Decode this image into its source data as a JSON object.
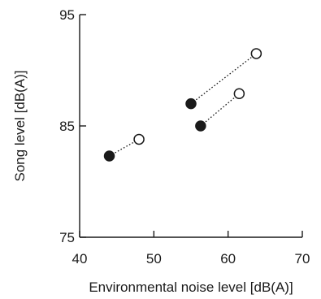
{
  "chart_data": {
    "type": "scatter",
    "xlabel": "Environmental noise level [dB(A)]",
    "ylabel": "Song level [dB(A)]",
    "xlim": [
      40,
      70
    ],
    "ylim": [
      75,
      95
    ],
    "xticks": [
      40,
      50,
      60,
      70
    ],
    "yticks": [
      75,
      85,
      95
    ],
    "grid": false,
    "marker_colors": {
      "filled": "#1a1a1a",
      "open": "#ffffff",
      "stroke": "#1a1a1a"
    },
    "pairs": [
      {
        "filled": [
          44.0,
          82.3
        ],
        "open": [
          48.0,
          83.8
        ]
      },
      {
        "filled": [
          55.0,
          87.0
        ],
        "open": [
          63.8,
          91.5
        ]
      },
      {
        "filled": [
          56.3,
          85.0
        ],
        "open": [
          61.5,
          87.9
        ]
      }
    ]
  }
}
